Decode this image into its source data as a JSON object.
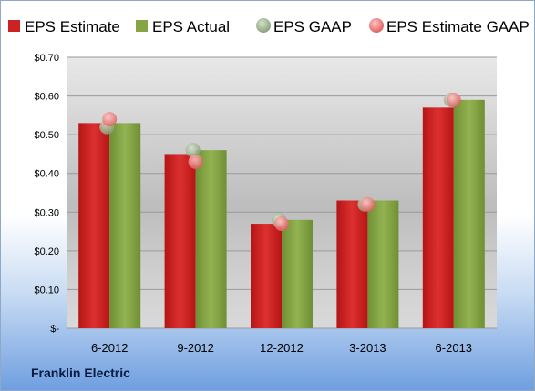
{
  "chart_data": {
    "type": "bar",
    "categories": [
      "6-2012",
      "9-2012",
      "12-2012",
      "3-2013",
      "6-2013"
    ],
    "series": [
      {
        "name": "EPS Estimate",
        "kind": "bar",
        "color": "#cc2222",
        "values": [
          0.53,
          0.45,
          0.27,
          0.33,
          0.57
        ]
      },
      {
        "name": "EPS Actual",
        "kind": "bar",
        "color": "#86a646",
        "values": [
          0.53,
          0.46,
          0.28,
          0.33,
          0.59
        ]
      },
      {
        "name": "EPS GAAP",
        "kind": "marker",
        "color": "#a9bf9a",
        "values": [
          0.52,
          0.46,
          0.28,
          0.32,
          0.59
        ]
      },
      {
        "name": "EPS Estimate GAAP",
        "kind": "marker",
        "color": "#f08a8a",
        "values": [
          0.54,
          0.43,
          0.27,
          0.32,
          0.59
        ]
      }
    ],
    "y_ticks": [
      0,
      0.1,
      0.2,
      0.3,
      0.4,
      0.5,
      0.6,
      0.7
    ],
    "y_tick_labels": [
      "$-",
      "$0.10",
      "$0.20",
      "$0.30",
      "$0.40",
      "$0.50",
      "$0.60",
      "$0.70"
    ],
    "ylim": [
      0,
      0.7
    ],
    "legend_position": "top",
    "grid": true
  },
  "footer": {
    "company": "Franklin Electric"
  }
}
